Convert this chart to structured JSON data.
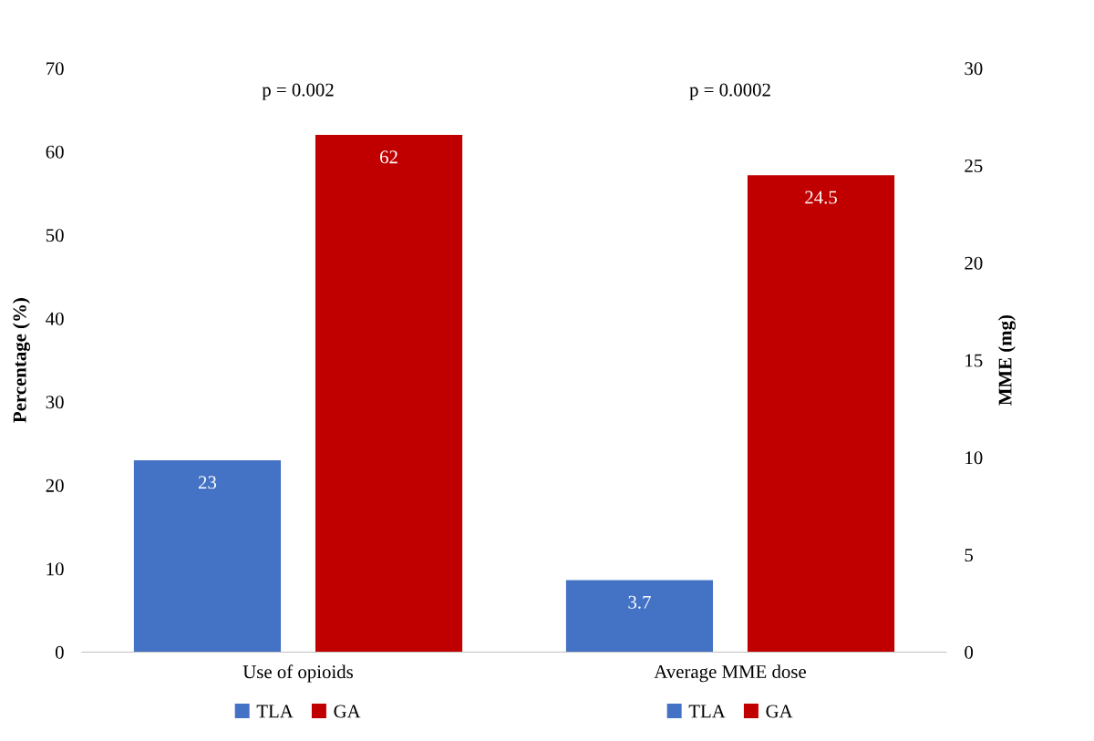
{
  "chart_data": [
    {
      "type": "bar",
      "categories": [
        "Use of opioids"
      ],
      "ylabel": "Percentage (%)",
      "ylim": [
        0,
        70
      ],
      "yticks": [
        0,
        10,
        20,
        30,
        40,
        50,
        60,
        70
      ],
      "data_labels": true,
      "legend": "bottom",
      "grid": false,
      "annotations": [
        "p = 0.002"
      ],
      "series": [
        {
          "name": "TLA",
          "color": "#4472c4",
          "values": [
            23
          ]
        },
        {
          "name": "GA",
          "color": "#c00000",
          "values": [
            62
          ]
        }
      ]
    },
    {
      "type": "bar",
      "categories": [
        "Average MME dose"
      ],
      "ylabel": "MME (mg)",
      "ylim": [
        0,
        30
      ],
      "yticks": [
        0,
        5,
        10,
        15,
        20,
        25,
        30
      ],
      "data_labels": true,
      "legend": "bottom",
      "grid": false,
      "annotations": [
        "p = 0.0002"
      ],
      "series": [
        {
          "name": "TLA",
          "color": "#4472c4",
          "values": [
            3.7
          ]
        },
        {
          "name": "GA",
          "color": "#c00000",
          "values": [
            24.5
          ]
        }
      ]
    }
  ]
}
